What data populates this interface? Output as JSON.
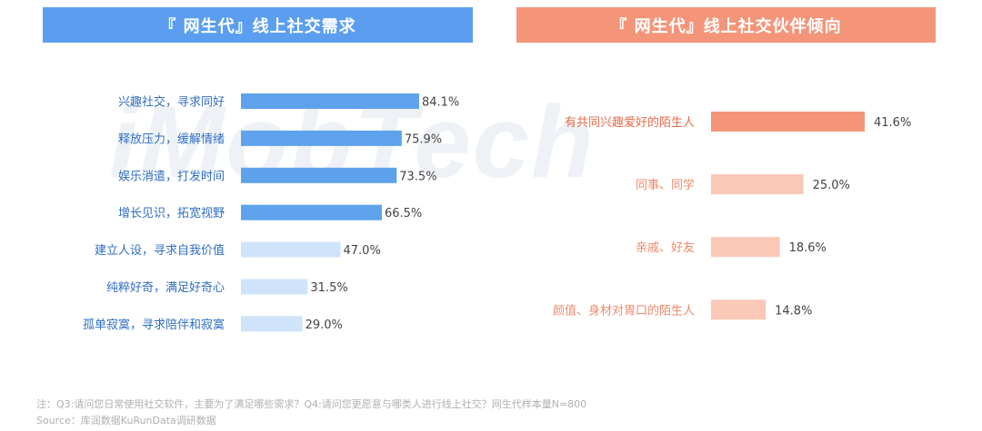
{
  "header": {
    "left_title": "『 网生代』线上社交需求",
    "right_title": "『 网生代』线上社交伙伴倾向"
  },
  "watermark": "iMobTech",
  "colors": {
    "left_banner": "#5b9ef0",
    "right_banner": "#f4957a",
    "left_strong": "#5ea2ec",
    "left_light": "#cfe4fb",
    "right_strong": "#f4957a",
    "right_light": "#f9c8b6",
    "right_label_strong": "#e66b4a",
    "right_label_light": "#ef8a6b"
  },
  "chart_data": [
    {
      "type": "bar",
      "orientation": "horizontal",
      "categories": [
        "兴趣社交，寻求同好",
        "释放压力，缓解情绪",
        "娱乐消遣，打发时间",
        "增长见识，拓宽视野",
        "建立人设，寻求自我价值",
        "纯粹好奇，满足好奇心",
        "孤单寂寞，寻求陪伴和寂寞"
      ],
      "values": [
        84.1,
        75.9,
        73.5,
        66.5,
        47.0,
        31.5,
        29.0
      ],
      "value_labels": [
        "84.1%",
        "75.9%",
        "73.5%",
        "66.5%",
        "47.0%",
        "31.5%",
        "29.0%"
      ],
      "highlight": [
        true,
        true,
        true,
        true,
        false,
        false,
        false
      ]
    },
    {
      "type": "bar",
      "orientation": "horizontal",
      "categories": [
        "有共同兴趣爱好的陌生人",
        "同事、同学",
        "亲戚、好友",
        "颜值、身材对胃口的陌生人"
      ],
      "values": [
        41.6,
        25.0,
        18.6,
        14.8
      ],
      "value_labels": [
        "41.6%",
        "25.0%",
        "18.6%",
        "14.8%"
      ],
      "highlight": [
        true,
        false,
        false,
        false
      ]
    }
  ],
  "footer": {
    "note": "注：Q3:请问您日常使用社交软件，主要为了满足哪些需求？Q4:请问您更愿意与哪类人进行线上社交？网生代样本量N=800",
    "source": "Source：库润数据KuRunData调研数据"
  }
}
